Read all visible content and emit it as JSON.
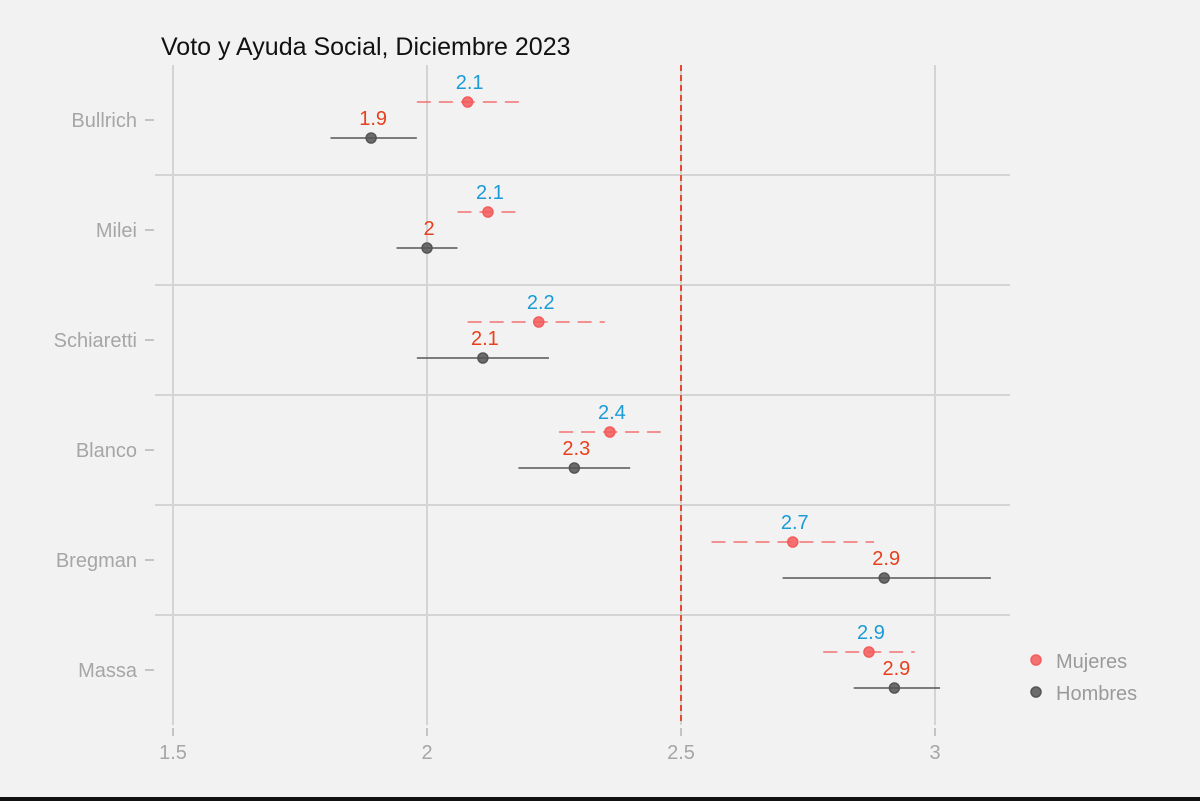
{
  "chart_data": {
    "type": "dot-errorbar",
    "title": "Voto y Ayuda Social, Diciembre 2023",
    "xlabel": "",
    "ylabel": "",
    "xlim": [
      1.5,
      3.15
    ],
    "xticks": [
      "1.5",
      "2",
      "2.5",
      "3"
    ],
    "xtick_values": [
      1.5,
      2,
      2.5,
      3
    ],
    "reference_line": 2.5,
    "reference_line_color": "#e64a2e",
    "grid": true,
    "legend_position": "right",
    "categories": [
      "Bullrich",
      "Milei",
      "Schiaretti",
      "Blanco",
      "Bregman",
      "Massa"
    ],
    "series": [
      {
        "name": "Mujeres",
        "color": "#f45b5b",
        "label_color": "#1a9bd7",
        "line_style": "dashed",
        "values": [
          2.08,
          2.12,
          2.22,
          2.36,
          2.72,
          2.87
        ],
        "ci_low": [
          1.98,
          2.06,
          2.08,
          2.26,
          2.56,
          2.78
        ],
        "ci_high": [
          2.19,
          2.19,
          2.35,
          2.46,
          2.88,
          2.96
        ],
        "labels": [
          "2.1",
          "2.1",
          "2.2",
          "2.4",
          "2.7",
          "2.9"
        ]
      },
      {
        "name": "Hombres",
        "color": "#555555",
        "label_color": "#e8401c",
        "line_style": "solid",
        "values": [
          1.89,
          2.0,
          2.11,
          2.29,
          2.9,
          2.92
        ],
        "ci_low": [
          1.81,
          1.94,
          1.98,
          2.18,
          2.7,
          2.84
        ],
        "ci_high": [
          1.98,
          2.06,
          2.24,
          2.4,
          3.11,
          3.01
        ],
        "labels": [
          "1.9",
          "2",
          "2.1",
          "2.3",
          "2.9",
          "2.9"
        ]
      }
    ]
  }
}
